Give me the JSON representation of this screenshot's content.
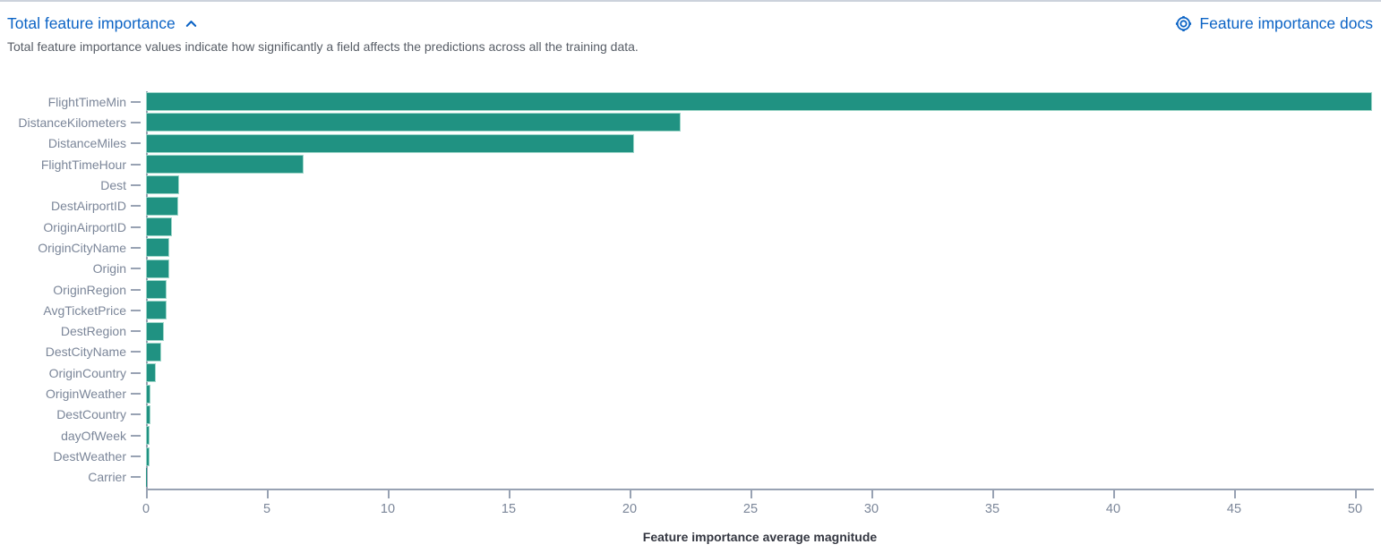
{
  "header": {
    "title": "Total feature importance",
    "docs_link": "Feature importance docs",
    "description": "Total feature importance values indicate how significantly a field affects the predictions across all the training data."
  },
  "colors": {
    "link_blue": "#0b63c5",
    "bar_fill": "#209282",
    "bar_border": "#9ed6c9",
    "axis_line": "#98a2b3",
    "tick_label": "#7b8699",
    "axis_title": "#343741",
    "description_text": "#575d66"
  },
  "icons": {
    "title_toggle": "chevron-up-icon",
    "docs": "life-ring-icon"
  },
  "chart_data": {
    "type": "bar",
    "orientation": "horizontal",
    "title": "",
    "xlabel": "Feature importance average magnitude",
    "ylabel": "",
    "xlim": [
      0,
      50.74
    ],
    "x_ticks": [
      0,
      5,
      10,
      15,
      20,
      25,
      30,
      35,
      40,
      45,
      50
    ],
    "grid": false,
    "legend": false,
    "categories": [
      "FlightTimeMin",
      "DistanceKilometers",
      "DistanceMiles",
      "FlightTimeHour",
      "Dest",
      "DestAirportID",
      "OriginAirportID",
      "OriginCityName",
      "Origin",
      "OriginRegion",
      "AvgTicketPrice",
      "DestRegion",
      "DestCityName",
      "OriginCountry",
      "OriginWeather",
      "DestCountry",
      "dayOfWeek",
      "DestWeather",
      "Carrier"
    ],
    "values": [
      50.7,
      22.1,
      20.2,
      6.5,
      1.37,
      1.32,
      1.07,
      0.97,
      0.95,
      0.86,
      0.84,
      0.74,
      0.64,
      0.41,
      0.2,
      0.19,
      0.16,
      0.15,
      0.05
    ]
  }
}
